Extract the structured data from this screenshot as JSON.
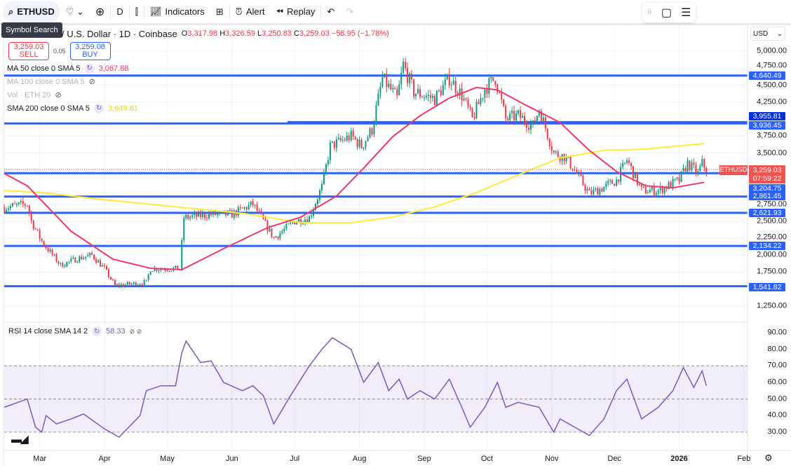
{
  "toolbar": {
    "symbol": "ETHUSD",
    "interval": "D",
    "indicators": "Indicators",
    "alert": "Alert",
    "replay": "Replay",
    "tooltip": "Symbol Search"
  },
  "header": {
    "title": "/ U.S. Dollar · 1D · Coinbase",
    "o_label": "O",
    "o": "3,317.98",
    "h_label": "H",
    "h": "3,326.59",
    "l_label": "L",
    "l": "3,250.83",
    "c_label": "C",
    "c": "3,259.03",
    "change": "−58.95 (−1.78%)"
  },
  "trade": {
    "sell_price": "3,259.03",
    "sell": "SELL",
    "spread": "0.05",
    "buy_price": "3,259.08",
    "buy": "BUY"
  },
  "indicators": [
    {
      "label": "MA 50 close 0 SMA 5",
      "value": "3,067.88",
      "color": "#f23668"
    },
    {
      "label": "MA 100 close 0 SMA 5",
      "value": ""
    },
    {
      "label": "Vol · ETH 20",
      "value": ""
    },
    {
      "label": "SMA 200 close 0 SMA 5",
      "value": "3,649.81",
      "color": "#ffeb3b"
    }
  ],
  "rsi": {
    "label": "RSI 14 close SMA 14 2",
    "value": "58.33",
    "ticks": [
      "90.00",
      "80.00",
      "70.00",
      "60.00",
      "50.00",
      "40.00",
      "30.00"
    ]
  },
  "axis": {
    "currency": "USD",
    "ticks": [
      "5,000.00",
      "4,750.00",
      "4,500.00",
      "4,250.00",
      "3,750.00",
      "3,500.00",
      "2,750.00",
      "2,500.00",
      "2,250.00",
      "2,000.00",
      "1,750.00",
      "1,250.00"
    ],
    "current_symbol": "ETHUSD",
    "current_price": "3,259.03",
    "countdown": "07:59:22"
  },
  "levels": [
    "4,640.49",
    "3,955.81",
    "3,936.45",
    "3,204.75",
    "2,861.45",
    "2,621.93",
    "2,134.22",
    "1,541.82"
  ],
  "months": [
    "Mar",
    "Apr",
    "May",
    "Jun",
    "Jul",
    "Aug",
    "Sep",
    "Oct",
    "Nov",
    "Dec",
    "2026",
    "Feb"
  ],
  "chart_data": {
    "type": "candlestick",
    "price_range": [
      1250,
      5000
    ],
    "month_days": [
      17,
      48,
      78,
      109,
      139,
      170,
      201,
      231,
      262,
      292,
      323,
      354
    ],
    "tick_values": [
      5000,
      4750,
      4500,
      4250,
      3750,
      3500,
      2750,
      2500,
      2250,
      2000,
      1750,
      1250
    ],
    "levels": [
      4640.49,
      3955.81,
      3936.45,
      3204.75,
      2861.45,
      2621.93,
      2134.22,
      1541.82
    ],
    "price_path": [
      [
        0,
        2700
      ],
      [
        11,
        2750
      ],
      [
        13,
        2500
      ],
      [
        18,
        2200
      ],
      [
        27,
        1850
      ],
      [
        35,
        1950
      ],
      [
        42,
        2000
      ],
      [
        48,
        1800
      ],
      [
        53,
        1550
      ],
      [
        68,
        1600
      ],
      [
        70,
        1800
      ],
      [
        84,
        1800
      ],
      [
        86,
        2550
      ],
      [
        99,
        2600
      ],
      [
        109,
        2600
      ],
      [
        119,
        2750
      ],
      [
        129,
        2250
      ],
      [
        139,
        2500
      ],
      [
        146,
        2550
      ],
      [
        152,
        3000
      ],
      [
        156,
        3600
      ],
      [
        166,
        3750
      ],
      [
        171,
        3600
      ],
      [
        176,
        3850
      ],
      [
        181,
        4600
      ],
      [
        188,
        4300
      ],
      [
        191,
        4800
      ],
      [
        196,
        4400
      ],
      [
        206,
        4300
      ],
      [
        213,
        4600
      ],
      [
        219,
        4350
      ],
      [
        224,
        4000
      ],
      [
        230,
        4450
      ],
      [
        235,
        4600
      ],
      [
        240,
        4000
      ],
      [
        246,
        4050
      ],
      [
        253,
        3900
      ],
      [
        256,
        4150
      ],
      [
        263,
        3500
      ],
      [
        268,
        3450
      ],
      [
        273,
        3250
      ],
      [
        280,
        2900
      ],
      [
        287,
        3000
      ],
      [
        293,
        3100
      ],
      [
        298,
        3400
      ],
      [
        305,
        2950
      ],
      [
        313,
        2950
      ],
      [
        323,
        3100
      ],
      [
        327,
        3350
      ],
      [
        332,
        3200
      ],
      [
        334,
        3350
      ],
      [
        336,
        3259
      ]
    ],
    "ma50": [
      [
        0,
        3200
      ],
      [
        11,
        3020
      ],
      [
        32,
        2350
      ],
      [
        52,
        1940
      ],
      [
        70,
        1806
      ],
      [
        85,
        1786
      ],
      [
        105,
        2095
      ],
      [
        126,
        2404
      ],
      [
        142,
        2560
      ],
      [
        159,
        2870
      ],
      [
        172,
        3280
      ],
      [
        186,
        3745
      ],
      [
        199,
        4050
      ],
      [
        213,
        4310
      ],
      [
        226,
        4465
      ],
      [
        236,
        4430
      ],
      [
        250,
        4200
      ],
      [
        266,
        3950
      ],
      [
        280,
        3540
      ],
      [
        293,
        3230
      ],
      [
        307,
        3020
      ],
      [
        320,
        2990
      ],
      [
        335,
        3070
      ]
    ],
    "sma200": [
      [
        0,
        2950
      ],
      [
        18,
        2920
      ],
      [
        48,
        2815
      ],
      [
        82,
        2710
      ],
      [
        115,
        2610
      ],
      [
        142,
        2476
      ],
      [
        166,
        2476
      ],
      [
        186,
        2560
      ],
      [
        206,
        2710
      ],
      [
        226,
        2920
      ],
      [
        246,
        3180
      ],
      [
        266,
        3430
      ],
      [
        287,
        3540
      ],
      [
        307,
        3560
      ],
      [
        335,
        3640
      ]
    ],
    "rsi_days": [
      0,
      11,
      15,
      18,
      20,
      25,
      32,
      38,
      48,
      55,
      65,
      68,
      75,
      82,
      85,
      87,
      94,
      99,
      105,
      114,
      119,
      124,
      129,
      136,
      146,
      152,
      157,
      166,
      172,
      179,
      184,
      189,
      193,
      199,
      206,
      213,
      219,
      223,
      230,
      236,
      240,
      246,
      256,
      263,
      266,
      273,
      280,
      287,
      293,
      298,
      305,
      313,
      320,
      325,
      330,
      334,
      336
    ],
    "rsi_values": [
      45,
      50,
      33,
      30,
      40,
      35,
      38,
      41,
      32,
      27,
      40,
      55,
      58,
      58,
      78,
      85,
      72,
      73,
      60,
      55,
      58,
      52,
      35,
      50,
      70,
      80,
      87,
      80,
      60,
      72,
      55,
      62,
      50,
      55,
      50,
      62,
      45,
      33,
      45,
      60,
      45,
      48,
      45,
      30,
      38,
      33,
      28,
      38,
      55,
      62,
      38,
      45,
      55,
      69,
      57,
      67,
      58
    ],
    "rsi_range": [
      30,
      90
    ]
  }
}
